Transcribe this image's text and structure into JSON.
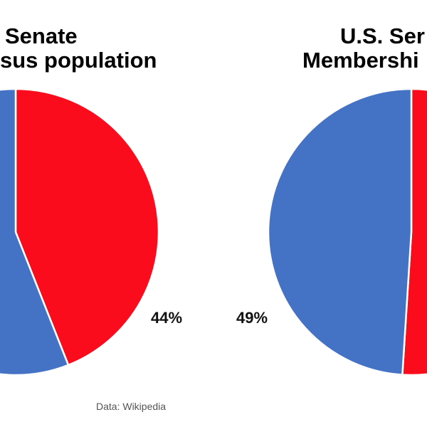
{
  "chart_data": [
    {
      "type": "pie",
      "title_lines": [
        "Senate",
        "sus population"
      ],
      "slices": [
        {
          "name": "red",
          "value": 44,
          "color": "#fa0c1c"
        },
        {
          "name": "blue",
          "value": 56,
          "color": "#4472c4"
        }
      ],
      "data_labels": [
        "44%"
      ]
    },
    {
      "type": "pie",
      "title_lines": [
        "U.S. Ser",
        "Membershi"
      ],
      "slices": [
        {
          "name": "red",
          "value": 51,
          "color": "#fa0c1c"
        },
        {
          "name": "blue",
          "value": 49,
          "color": "#4472c4"
        }
      ],
      "data_labels": [
        "49%"
      ]
    }
  ],
  "source": "Data: Wikipedia"
}
